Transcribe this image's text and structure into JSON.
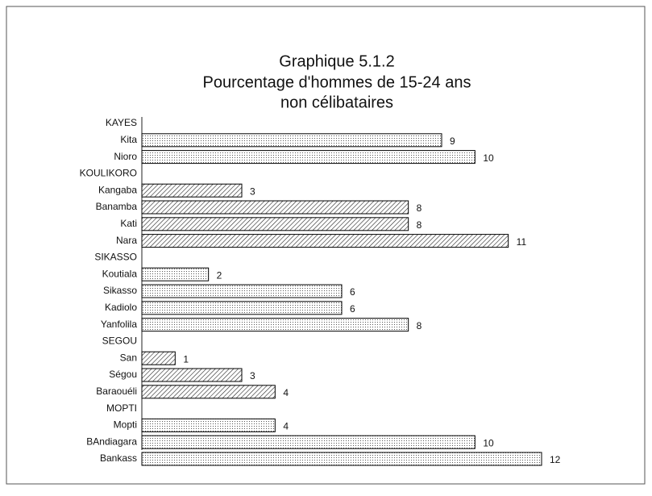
{
  "chart_data": {
    "type": "hbar",
    "title": [
      "Graphique 5.1.2",
      "Pourcentage d'hommes de 15-24 ans",
      "non célibataires"
    ],
    "categories": [
      "KAYES",
      "Kita",
      "Nioro",
      "KOULIKORO",
      "Kangaba",
      "Banamba",
      "Kati",
      "Nara",
      "SIKASSO",
      "Koutiala",
      "Sikasso",
      "Kadiolo",
      "Yanfolila",
      "SEGOU",
      "San",
      "Ségou",
      "Baraouéli",
      "MOPTI",
      "Mopti",
      "BAndiagara",
      "Bankass"
    ],
    "values": [
      null,
      9,
      10,
      null,
      3,
      8,
      8,
      11,
      null,
      2,
      6,
      6,
      8,
      null,
      1,
      3,
      4,
      null,
      4,
      10,
      12
    ],
    "bar_patterns": [
      null,
      "dots",
      "dots",
      null,
      "hatch",
      "hatch",
      "hatch",
      "hatch",
      null,
      "dots",
      "dots",
      "dots",
      "dots",
      null,
      "hatch",
      "hatch",
      "hatch",
      null,
      "dots",
      "dots",
      "dots"
    ],
    "color": "#000000"
  }
}
